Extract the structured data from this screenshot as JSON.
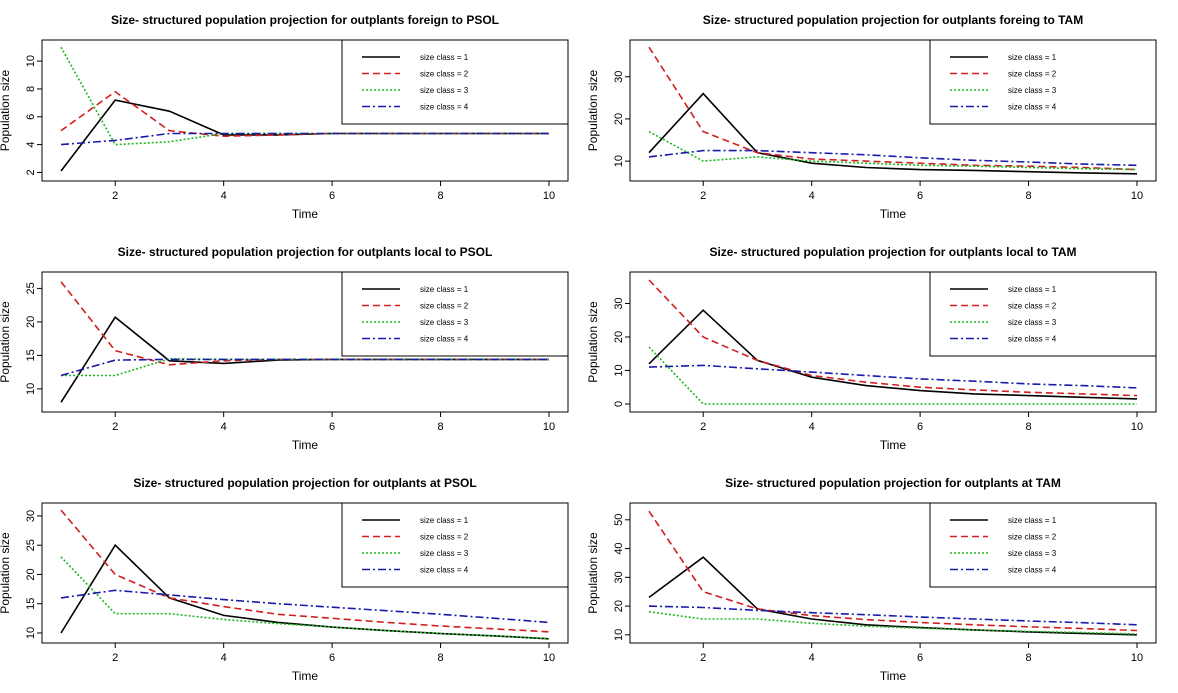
{
  "chart_data": [
    {
      "type": "line",
      "title": "Size- structured population projection for outplants foreign to PSOL",
      "xlabel": "Time",
      "ylabel": "Population size",
      "xlim": [
        0.6,
        10.4
      ],
      "ylim": [
        1.6,
        11.3
      ],
      "xticks": [
        2,
        4,
        6,
        8,
        10
      ],
      "yticks": [
        2,
        4,
        6,
        8,
        10
      ],
      "x": [
        1,
        2,
        3,
        4,
        5,
        6,
        7,
        8,
        9,
        10
      ],
      "series": [
        {
          "name": "size class = 1",
          "values": [
            2.1,
            7.2,
            6.4,
            4.7,
            4.7,
            4.8,
            4.8,
            4.8,
            4.8,
            4.8
          ]
        },
        {
          "name": "size class = 2",
          "values": [
            5.0,
            7.8,
            5.0,
            4.6,
            4.7,
            4.8,
            4.8,
            4.8,
            4.8,
            4.8
          ]
        },
        {
          "name": "size class = 3",
          "values": [
            11.0,
            4.0,
            4.2,
            4.8,
            4.8,
            4.8,
            4.8,
            4.8,
            4.8,
            4.8
          ]
        },
        {
          "name": "size class = 4",
          "values": [
            4.0,
            4.3,
            4.8,
            4.8,
            4.8,
            4.8,
            4.8,
            4.8,
            4.8,
            4.8
          ]
        }
      ]
    },
    {
      "type": "line",
      "title": "Size- structured population projection for outplants foreing to TAM",
      "xlabel": "Time",
      "ylabel": "Population size",
      "xlim": [
        0.6,
        10.4
      ],
      "ylim": [
        6,
        38
      ],
      "xticks": [
        2,
        4,
        6,
        8,
        10
      ],
      "yticks": [
        10,
        20,
        30
      ],
      "x": [
        1,
        2,
        3,
        4,
        5,
        6,
        7,
        8,
        9,
        10
      ],
      "series": [
        {
          "name": "size class = 1",
          "values": [
            12,
            26,
            12,
            9.5,
            8.5,
            8,
            7.8,
            7.5,
            7.2,
            7
          ]
        },
        {
          "name": "size class = 2",
          "values": [
            37,
            17,
            12,
            10.5,
            10,
            9.5,
            9,
            8.8,
            8.5,
            8
          ]
        },
        {
          "name": "size class = 3",
          "values": [
            17,
            10,
            11,
            10,
            9.5,
            9,
            8.8,
            8.5,
            8.2,
            8
          ]
        },
        {
          "name": "size class = 4",
          "values": [
            11,
            12.5,
            12.5,
            12,
            11.5,
            10.8,
            10.2,
            9.8,
            9.3,
            9
          ]
        }
      ]
    },
    {
      "type": "line",
      "title": "Size- structured population projection for outplants local to PSOL",
      "xlabel": "Time",
      "ylabel": "Population size",
      "xlim": [
        0.6,
        10.4
      ],
      "ylim": [
        7,
        27
      ],
      "xticks": [
        2,
        4,
        6,
        8,
        10
      ],
      "yticks": [
        10,
        15,
        20,
        25
      ],
      "x": [
        1,
        2,
        3,
        4,
        5,
        6,
        7,
        8,
        9,
        10
      ],
      "series": [
        {
          "name": "size class = 1",
          "values": [
            8,
            20.7,
            14.2,
            13.8,
            14.3,
            14.4,
            14.4,
            14.4,
            14.4,
            14.4
          ]
        },
        {
          "name": "size class = 2",
          "values": [
            26,
            15.7,
            13.6,
            14.2,
            14.4,
            14.4,
            14.4,
            14.4,
            14.4,
            14.4
          ]
        },
        {
          "name": "size class = 3",
          "values": [
            12,
            12,
            14.5,
            14.4,
            14.4,
            14.4,
            14.4,
            14.4,
            14.4,
            14.4
          ]
        },
        {
          "name": "size class = 4",
          "values": [
            12,
            14.3,
            14.4,
            14.4,
            14.4,
            14.4,
            14.4,
            14.4,
            14.4,
            14.4
          ]
        }
      ]
    },
    {
      "type": "line",
      "title": "Size- structured population projection for outplants local to TAM",
      "xlabel": "Time",
      "ylabel": "Population size",
      "xlim": [
        0.6,
        10.4
      ],
      "ylim": [
        -1.5,
        38.5
      ],
      "xticks": [
        2,
        4,
        6,
        8,
        10
      ],
      "yticks": [
        0,
        10,
        20,
        30
      ],
      "x": [
        1,
        2,
        3,
        4,
        5,
        6,
        7,
        8,
        9,
        10
      ],
      "series": [
        {
          "name": "size class = 1",
          "values": [
            12,
            28,
            13,
            8,
            5.5,
            4,
            3,
            2.5,
            2,
            1.5
          ]
        },
        {
          "name": "size class = 2",
          "values": [
            37,
            20,
            13,
            8.5,
            6.5,
            5,
            4.2,
            3.5,
            3,
            2.5
          ]
        },
        {
          "name": "size class = 3",
          "values": [
            17,
            0,
            0,
            0,
            0,
            0,
            0,
            0,
            0,
            0
          ]
        },
        {
          "name": "size class = 4",
          "values": [
            11,
            11.5,
            10.5,
            9.5,
            8.5,
            7.5,
            6.8,
            6,
            5.5,
            4.8
          ]
        }
      ]
    },
    {
      "type": "line",
      "title": "Size- structured population projection for outplants at PSOL",
      "xlabel": "Time",
      "ylabel": "Population size",
      "xlim": [
        0.6,
        10.4
      ],
      "ylim": [
        8.8,
        31.7
      ],
      "xticks": [
        2,
        4,
        6,
        8,
        10
      ],
      "yticks": [
        10,
        15,
        20,
        25,
        30
      ],
      "x": [
        1,
        2,
        3,
        4,
        5,
        6,
        7,
        8,
        9,
        10
      ],
      "series": [
        {
          "name": "size class = 1",
          "values": [
            10,
            25,
            16,
            13,
            11.8,
            11,
            10.4,
            9.9,
            9.5,
            9
          ]
        },
        {
          "name": "size class = 2",
          "values": [
            31,
            20,
            16,
            14.5,
            13.2,
            12.5,
            11.8,
            11.2,
            10.7,
            10.2
          ]
        },
        {
          "name": "size class = 3",
          "values": [
            23,
            13.3,
            13.3,
            12.3,
            11.6,
            11,
            10.4,
            9.9,
            9.5,
            9
          ]
        },
        {
          "name": "size class = 4",
          "values": [
            16,
            17.3,
            16.5,
            15.7,
            15,
            14.4,
            13.8,
            13.2,
            12.5,
            11.8
          ]
        }
      ]
    },
    {
      "type": "line",
      "title": "Size- structured population projection for outplants at TAM",
      "xlabel": "Time",
      "ylabel": "Population size",
      "xlim": [
        0.6,
        10.4
      ],
      "ylim": [
        8.2,
        54.8
      ],
      "xticks": [
        2,
        4,
        6,
        8,
        10
      ],
      "yticks": [
        10,
        20,
        30,
        40,
        50
      ],
      "x": [
        1,
        2,
        3,
        4,
        5,
        6,
        7,
        8,
        9,
        10
      ],
      "series": [
        {
          "name": "size class = 1",
          "values": [
            23,
            37,
            19,
            15.5,
            13.5,
            12.5,
            11.7,
            11,
            10.5,
            10
          ]
        },
        {
          "name": "size class = 2",
          "values": [
            53,
            25,
            19,
            16.7,
            15.3,
            14.3,
            13.5,
            12.8,
            12.2,
            11.5
          ]
        },
        {
          "name": "size class = 3",
          "values": [
            18,
            15.5,
            15.5,
            14,
            13,
            12.3,
            11.7,
            11.2,
            10.8,
            10.3
          ]
        },
        {
          "name": "size class = 4",
          "values": [
            20,
            19.5,
            18.5,
            17.7,
            17,
            16.2,
            15.5,
            14.8,
            14.2,
            13.5
          ]
        }
      ]
    }
  ],
  "series_styles": [
    {
      "color": "#000000",
      "dash": ""
    },
    {
      "color": "#d11f1f",
      "dash": "7,4"
    },
    {
      "color": "#1fb81f",
      "dash": "2,2"
    },
    {
      "color": "#1a1aaa",
      "dash": "8,3,2,3"
    }
  ]
}
